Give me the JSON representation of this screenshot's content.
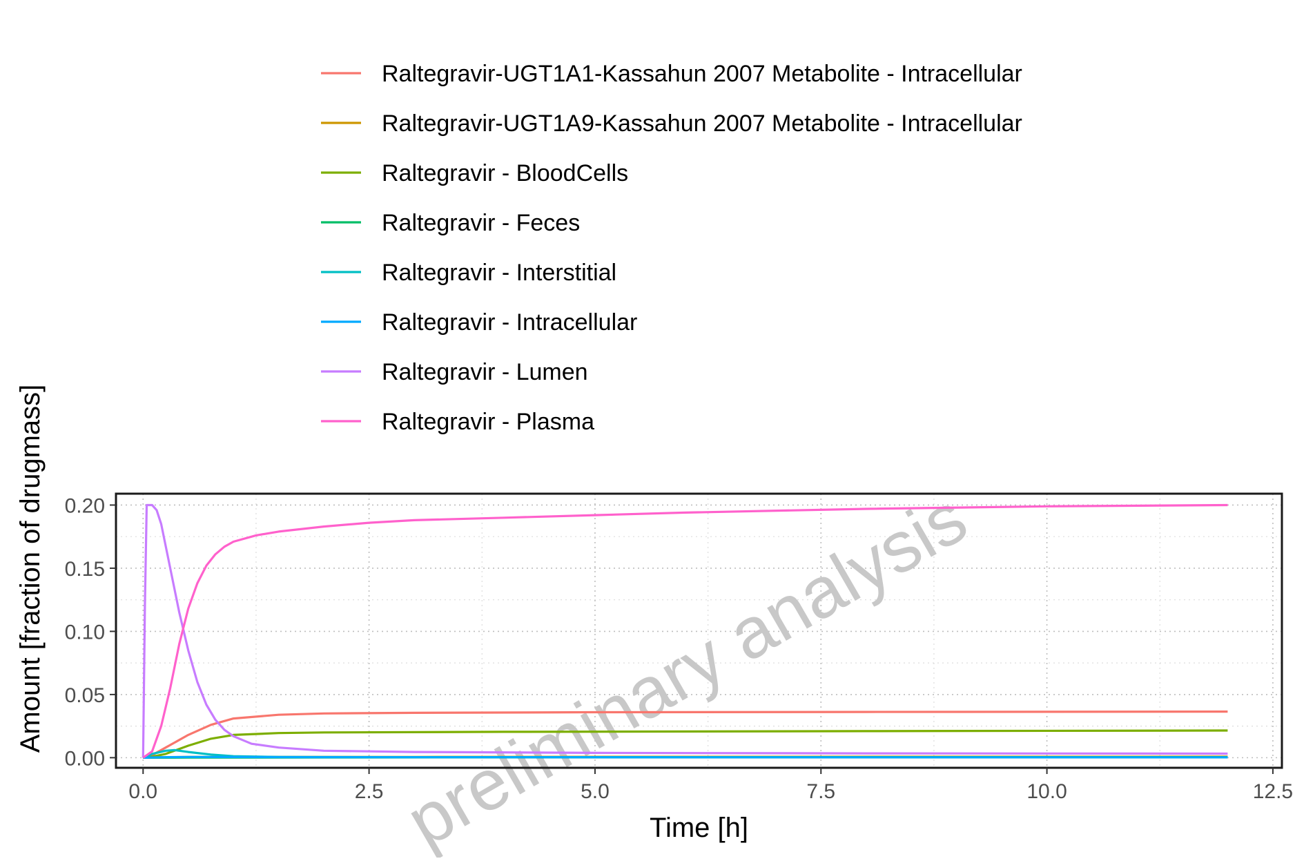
{
  "chart_data": {
    "type": "line",
    "title": "",
    "xlabel": "Time [h]",
    "ylabel": "Amount [fraction of drugmass]",
    "xlim": [
      -0.3,
      12.6
    ],
    "ylim": [
      -0.008,
      0.209
    ],
    "x_ticks": [
      0,
      2.5,
      5,
      7.5,
      10,
      12.5
    ],
    "x_tick_labels": [
      "0.0",
      "2.5",
      "5.0",
      "7.5",
      "10.0",
      "12.5"
    ],
    "y_ticks": [
      0,
      0.05,
      0.1,
      0.15,
      0.2
    ],
    "y_tick_labels": [
      "0.00",
      "0.05",
      "0.10",
      "0.15",
      "0.20"
    ],
    "grid": true,
    "legend_position": "top",
    "watermark": "preliminary analysis",
    "series": [
      {
        "name": "Raltegravir-UGT1A1-Kassahun 2007 Metabolite - Intracellular",
        "color": "#F8766D",
        "points": [
          [
            0,
            0
          ],
          [
            0.1,
            0.002
          ],
          [
            0.25,
            0.008
          ],
          [
            0.5,
            0.018
          ],
          [
            0.75,
            0.026
          ],
          [
            1.0,
            0.031
          ],
          [
            1.5,
            0.034
          ],
          [
            2.0,
            0.035
          ],
          [
            3.0,
            0.0355
          ],
          [
            5.0,
            0.036
          ],
          [
            8.0,
            0.0362
          ],
          [
            12.0,
            0.0365
          ]
        ]
      },
      {
        "name": "Raltegravir-UGT1A9-Kassahun 2007 Metabolite - Intracellular",
        "color": "#CD9600",
        "points": [
          [
            0,
            0
          ],
          [
            0.1,
            0.0002
          ],
          [
            0.5,
            0.0005
          ],
          [
            1.0,
            0.0006
          ],
          [
            3.0,
            0.0006
          ],
          [
            6.0,
            0.0007
          ],
          [
            12.0,
            0.0008
          ]
        ]
      },
      {
        "name": "Raltegravir - BloodCells",
        "color": "#7CAE00",
        "points": [
          [
            0,
            0
          ],
          [
            0.1,
            0.0008
          ],
          [
            0.25,
            0.003
          ],
          [
            0.5,
            0.0095
          ],
          [
            0.75,
            0.015
          ],
          [
            1.0,
            0.018
          ],
          [
            1.5,
            0.0195
          ],
          [
            2.0,
            0.02
          ],
          [
            4.0,
            0.0205
          ],
          [
            8.0,
            0.021
          ],
          [
            12.0,
            0.0215
          ]
        ]
      },
      {
        "name": "Raltegravir - Feces",
        "color": "#00BE67",
        "points": [
          [
            0,
            0
          ],
          [
            0.5,
            0.0001
          ],
          [
            2.0,
            0.0002
          ],
          [
            6.0,
            0.0003
          ],
          [
            12.0,
            0.0004
          ]
        ]
      },
      {
        "name": "Raltegravir - Interstitial",
        "color": "#00BFC4",
        "points": [
          [
            0,
            0
          ],
          [
            0.1,
            0.003
          ],
          [
            0.25,
            0.0055
          ],
          [
            0.35,
            0.006
          ],
          [
            0.5,
            0.0045
          ],
          [
            0.75,
            0.0025
          ],
          [
            1.0,
            0.0012
          ],
          [
            1.5,
            0.0006
          ],
          [
            3.0,
            0.0004
          ],
          [
            12.0,
            0.0003
          ]
        ]
      },
      {
        "name": "Raltegravir - Intracellular",
        "color": "#00A9FF",
        "points": [
          [
            0,
            0
          ],
          [
            0.25,
            0.0004
          ],
          [
            0.5,
            0.0006
          ],
          [
            1.0,
            0.0005
          ],
          [
            2.0,
            0.0004
          ],
          [
            6.0,
            0.0003
          ],
          [
            12.0,
            0.0003
          ]
        ]
      },
      {
        "name": "Raltegravir - Lumen",
        "color": "#C77CFF",
        "points": [
          [
            0,
            0
          ],
          [
            0.02,
            0.12
          ],
          [
            0.04,
            0.2
          ],
          [
            0.08,
            0.2
          ],
          [
            0.1,
            0.2
          ],
          [
            0.15,
            0.196
          ],
          [
            0.2,
            0.185
          ],
          [
            0.3,
            0.15
          ],
          [
            0.4,
            0.115
          ],
          [
            0.5,
            0.085
          ],
          [
            0.6,
            0.06
          ],
          [
            0.7,
            0.042
          ],
          [
            0.8,
            0.03
          ],
          [
            0.9,
            0.022
          ],
          [
            1.0,
            0.017
          ],
          [
            1.2,
            0.011
          ],
          [
            1.5,
            0.008
          ],
          [
            2.0,
            0.0055
          ],
          [
            3.0,
            0.0045
          ],
          [
            5.0,
            0.0038
          ],
          [
            8.0,
            0.0034
          ],
          [
            12.0,
            0.0032
          ]
        ]
      },
      {
        "name": "Raltegravir - Plasma",
        "color": "#FF61CC",
        "points": [
          [
            0,
            0
          ],
          [
            0.1,
            0.005
          ],
          [
            0.2,
            0.025
          ],
          [
            0.3,
            0.055
          ],
          [
            0.4,
            0.09
          ],
          [
            0.5,
            0.118
          ],
          [
            0.6,
            0.138
          ],
          [
            0.7,
            0.152
          ],
          [
            0.8,
            0.161
          ],
          [
            0.9,
            0.167
          ],
          [
            1.0,
            0.171
          ],
          [
            1.25,
            0.176
          ],
          [
            1.5,
            0.179
          ],
          [
            2.0,
            0.183
          ],
          [
            2.5,
            0.186
          ],
          [
            3.0,
            0.188
          ],
          [
            4.0,
            0.19
          ],
          [
            5.0,
            0.192
          ],
          [
            6.0,
            0.194
          ],
          [
            8.0,
            0.197
          ],
          [
            10.0,
            0.199
          ],
          [
            12.0,
            0.2
          ]
        ]
      }
    ]
  }
}
